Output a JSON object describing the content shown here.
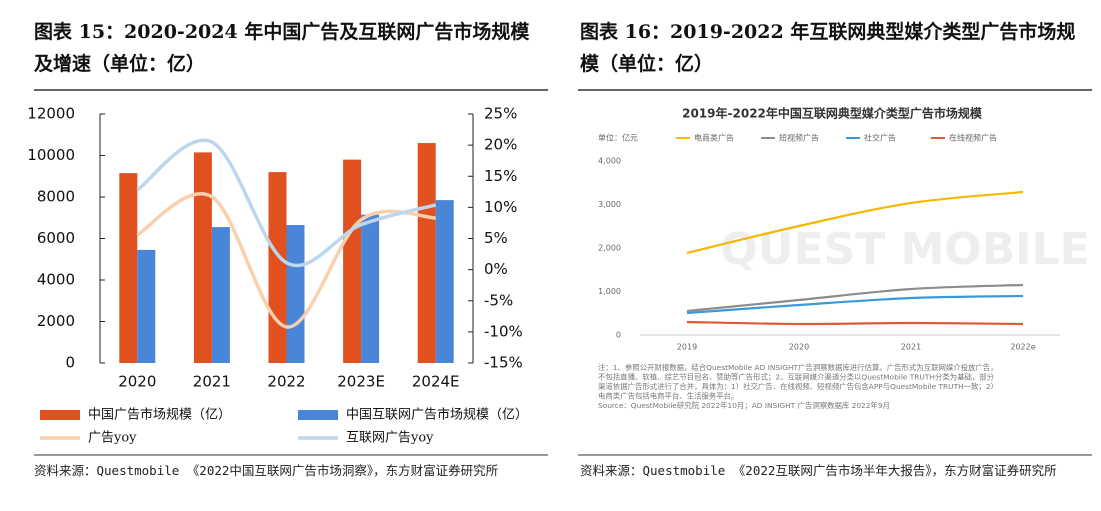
{
  "chart_data": [
    {
      "type": "combo",
      "title": "图表 15：2020-2024 年中国广告及互联网广告市场规模及增速（单位：亿）",
      "source": "资料来源：Questmobile 《2022中国互联网广告市场洞察》，东方财富证券研究所",
      "categories": [
        "2020",
        "2021",
        "2022",
        "2023E",
        "2024E"
      ],
      "series": [
        {
          "name": "中国广告市场规模（亿）",
          "color": "#e0511f",
          "type": "bar",
          "values": [
            9150,
            10150,
            9200,
            9800,
            10600
          ]
        },
        {
          "name": "中国互联网广告市场规模（亿）",
          "color": "#4a86d8",
          "type": "bar",
          "values": [
            5450,
            6550,
            6650,
            7150,
            7850
          ]
        },
        {
          "name": "广告yoy",
          "color": "#f9cfae",
          "type": "line",
          "axis": "y2",
          "values": [
            5.6,
            11.7,
            -9.2,
            8.0,
            8.3
          ]
        },
        {
          "name": "互联网广告yoy",
          "color": "#bcd6ee",
          "type": "line",
          "axis": "y2",
          "values": [
            12.8,
            20.5,
            1.1,
            7.2,
            10.4
          ]
        }
      ],
      "ylim": [
        0,
        12000
      ],
      "yticks": [
        0,
        2000,
        4000,
        6000,
        8000,
        10000,
        12000
      ],
      "y2lim": [
        -15,
        25
      ],
      "y2ticks": [
        {
          "value": -15,
          "label": "-15%"
        },
        {
          "value": -10,
          "label": "-10%"
        },
        {
          "value": -5,
          "label": "-5%"
        },
        {
          "value": 0,
          "label": "0%"
        },
        {
          "value": 5,
          "label": "5%"
        },
        {
          "value": 10,
          "label": "10%"
        },
        {
          "value": 15,
          "label": "15%"
        },
        {
          "value": 20,
          "label": "20%"
        },
        {
          "value": 25,
          "label": "25%"
        }
      ]
    },
    {
      "type": "line",
      "title": "图表 16：2019-2022 年互联网典型媒介类型广告市场规模（单位：亿）",
      "source": "资料来源：Questmobile 《2022互联网广告市场半年大报告》，东方财富证券研究所",
      "inner_title": "2019年-2022年中国互联网典型媒介类型广告市场规模",
      "unit_label": "单位：亿元",
      "watermark": "QUEST MOBILE",
      "categories": [
        "2019",
        "2020",
        "2021",
        "2022e"
      ],
      "series": [
        {
          "name": "电商类广告",
          "color": "#f5b800",
          "values": [
            1885,
            2506,
            3034,
            3287
          ]
        },
        {
          "name": "短视频广告",
          "color": "#8c8c8c",
          "values": [
            552,
            805,
            1057,
            1150
          ]
        },
        {
          "name": "社交广告",
          "color": "#3a9ad9",
          "values": [
            506,
            690,
            850,
            897
          ]
        },
        {
          "name": "在线视频广告",
          "color": "#e05a3a",
          "values": [
            299,
            253,
            276,
            253
          ]
        }
      ],
      "ylim": [
        0,
        4000
      ],
      "yticks": [
        0,
        {
          "value": 1000,
          "label": "1,000"
        },
        {
          "value": 2000,
          "label": "2,000"
        },
        {
          "value": 3000,
          "label": "3,000"
        },
        {
          "value": 4000,
          "label": "4,000"
        }
      ],
      "notes": [
        "注：1、参照公开财报数据，结合QuestMobile AD INSIGHT广告洞察数据库进行估算。广告形式为互联网媒介投放广告，",
        "不包括直播、软植、综艺节目冠名、赞助等广告形式；2、互联网媒介渠道分类以QuestMobile TRUTH分类为基础，部分",
        "渠道依据广告形式进行了合并，具体为：1）社交广告、在线视频、短视频广告包含APP与QuestMobile TRUTH一致；2）",
        "电商类广告包括电商平台、生活服务平台。",
        "Source：QuestMobile研究院 2022年10月；AD INSIGHT 广告洞察数据库 2022年9月"
      ]
    }
  ]
}
